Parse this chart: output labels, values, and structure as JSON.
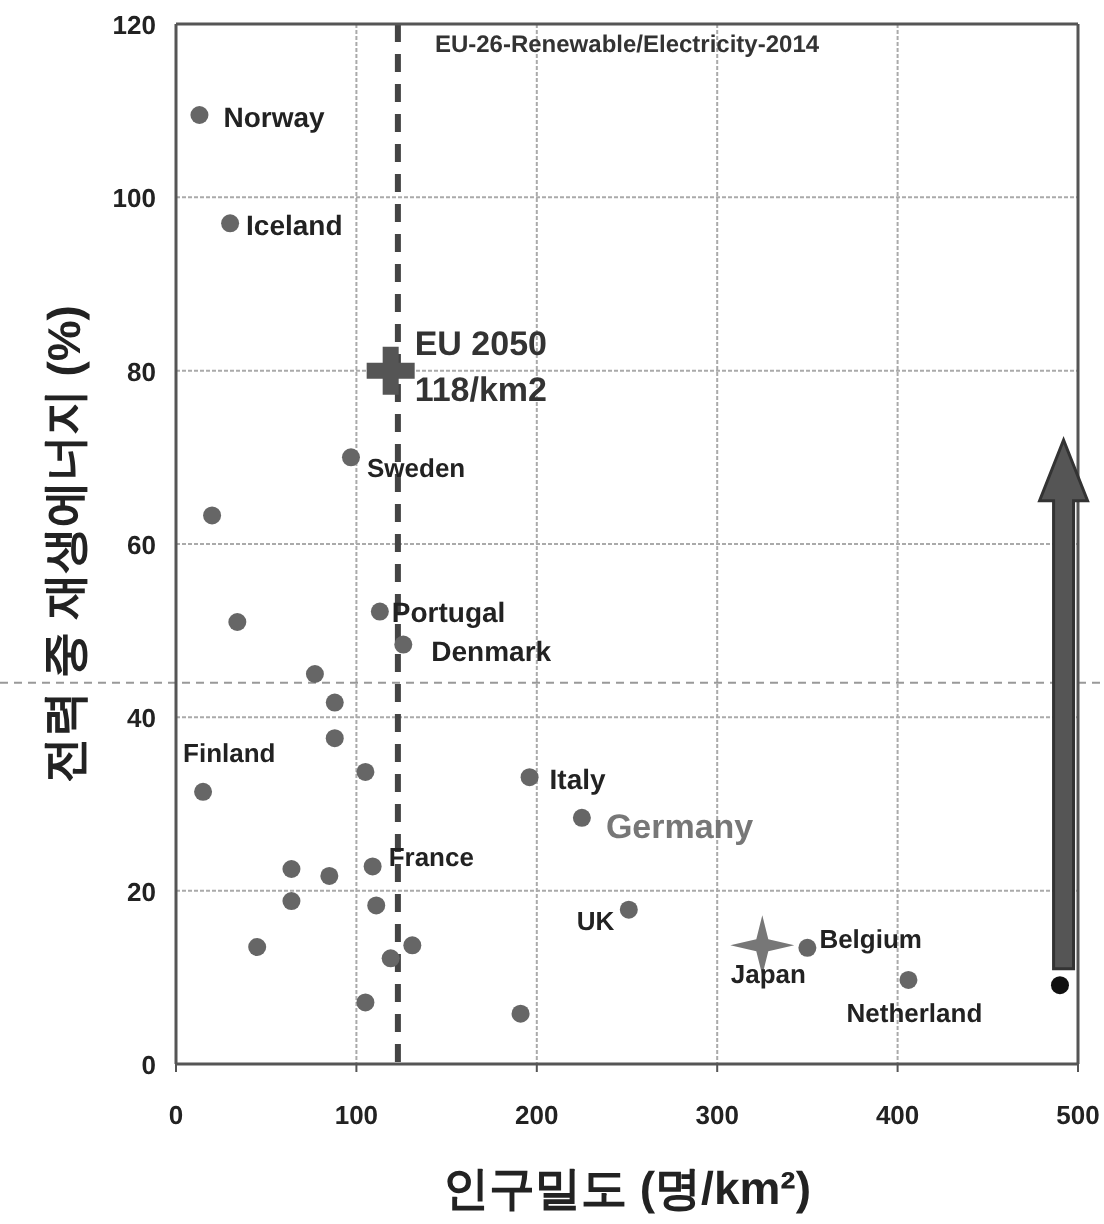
{
  "chart_data": {
    "type": "scatter",
    "title": "EU-26-Renewable/Electricity-2014",
    "xlabel": "인구밀도 (명/km²)",
    "ylabel": "전력 중 재생에너지 (%)",
    "xlim": [
      0,
      500
    ],
    "ylim": [
      0,
      120
    ],
    "xticks": [
      0,
      100,
      200,
      300,
      400,
      500
    ],
    "yticks": [
      0,
      20,
      40,
      60,
      80,
      100,
      120
    ],
    "grid": true,
    "series": [
      {
        "color": "#666666",
        "marker": "circle",
        "x": [
          13,
          30,
          97,
          20,
          113,
          126,
          34,
          77,
          88,
          88,
          105,
          15,
          196,
          225,
          109,
          64,
          85,
          64,
          111,
          251,
          45,
          131,
          119,
          105,
          191,
          350,
          406
        ],
        "values": [
          109.5,
          97,
          70,
          63.3,
          52.2,
          48.4,
          51,
          45,
          41.7,
          37.6,
          33.7,
          31.4,
          33.1,
          28.4,
          22.8,
          22.5,
          21.7,
          18.8,
          18.3,
          17.8,
          13.5,
          13.7,
          12.2,
          7.1,
          5.8,
          13.4,
          9.7
        ]
      },
      {
        "color": "#555555",
        "marker": "cross",
        "x": [
          119
        ],
        "values": [
          80
        ]
      },
      {
        "color": "#777777",
        "marker": "star",
        "x": [
          325
        ],
        "values": [
          13.7
        ]
      },
      {
        "color": "#111111",
        "marker": "circle",
        "x": [
          490
        ],
        "values": [
          9.1
        ]
      }
    ],
    "ref_lines": [
      {
        "axis": "x",
        "value": 123,
        "color": "#444444",
        "line_style": "dashed"
      },
      {
        "axis": "y",
        "value": 44,
        "color": "#999999",
        "line_style": "dashed"
      }
    ],
    "annotations": [
      {
        "text": "Norway",
        "x": 13,
        "y": 109.5
      },
      {
        "text": "Iceland",
        "x": 30,
        "y": 97
      },
      {
        "text": "EU 2050\n118/km2",
        "x": 119,
        "y": 80
      },
      {
        "text": "Sweden",
        "x": 97,
        "y": 70
      },
      {
        "text": "Portugal",
        "x": 113,
        "y": 52.2
      },
      {
        "text": "Denmark",
        "x": 126,
        "y": 48.4
      },
      {
        "text": "Finland",
        "x": 15,
        "y": 31.4
      },
      {
        "text": "Italy",
        "x": 196,
        "y": 33.1
      },
      {
        "text": "Germany",
        "x": 225,
        "y": 28.4
      },
      {
        "text": "France",
        "x": 109,
        "y": 22.8
      },
      {
        "text": "UK",
        "x": 251,
        "y": 17.8
      },
      {
        "text": "Japan",
        "x": 325,
        "y": 13.7
      },
      {
        "text": "Belgium",
        "x": 350,
        "y": 13.4
      },
      {
        "text": "Netherland",
        "x": 406,
        "y": 9.7
      }
    ]
  }
}
